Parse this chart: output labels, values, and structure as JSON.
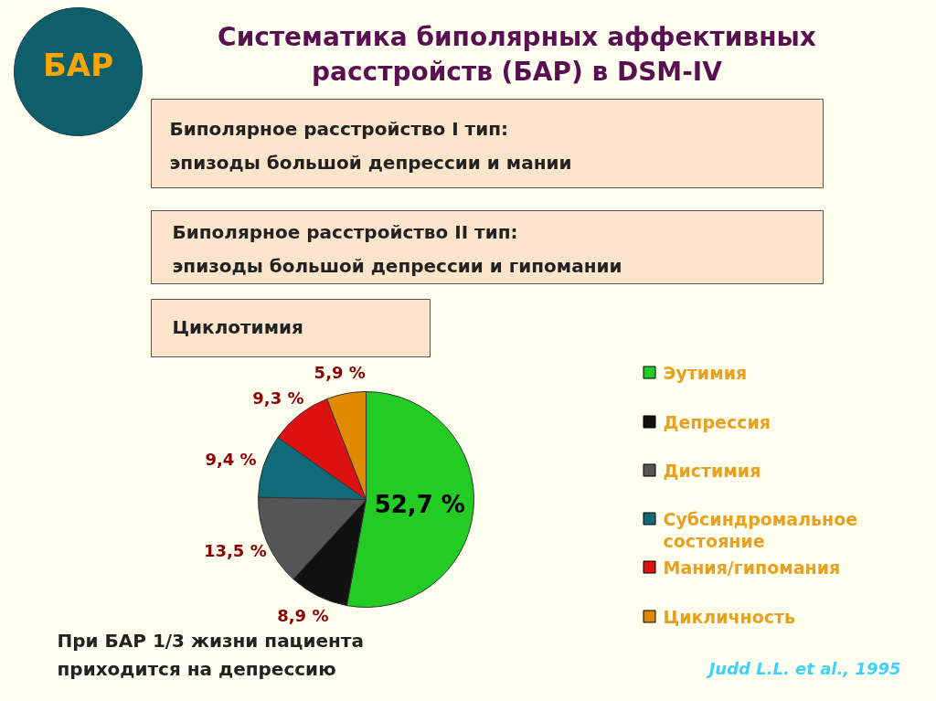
{
  "chart_data": {
    "type": "pie",
    "title": "Систематика биполярных аффективных\nрасстройств (БАР) в DSM-IV",
    "categories": [
      "Эутимия",
      "Депрессия",
      "Дистимия",
      "Субсиндромальное состояние",
      "Мания/гипомания",
      "Цикличность"
    ],
    "values": [
      52.7,
      8.9,
      13.5,
      9.4,
      9.3,
      5.9
    ],
    "colors": [
      "#22cc22",
      "#111111",
      "#555555",
      "#106a78",
      "#dd1111",
      "#e08a00"
    ],
    "value_labels": [
      "52,7 %",
      "8,9 %",
      "13,5 %",
      "9,4 %",
      "9,3 %",
      "5,9 %"
    ],
    "legend": "right",
    "annotations": [
      "БАР",
      "Биполярное расстройство I тип:",
      "эпизоды большой депрессии и мании",
      "Биполярное расстройство II тип:",
      "эпизоды большой депрессии и гипомании",
      "Циклотимия",
      "При БАР 1/3 жизни пациента",
      "приходится на депрессию",
      "Judd L.L. et al., 1995"
    ]
  }
}
